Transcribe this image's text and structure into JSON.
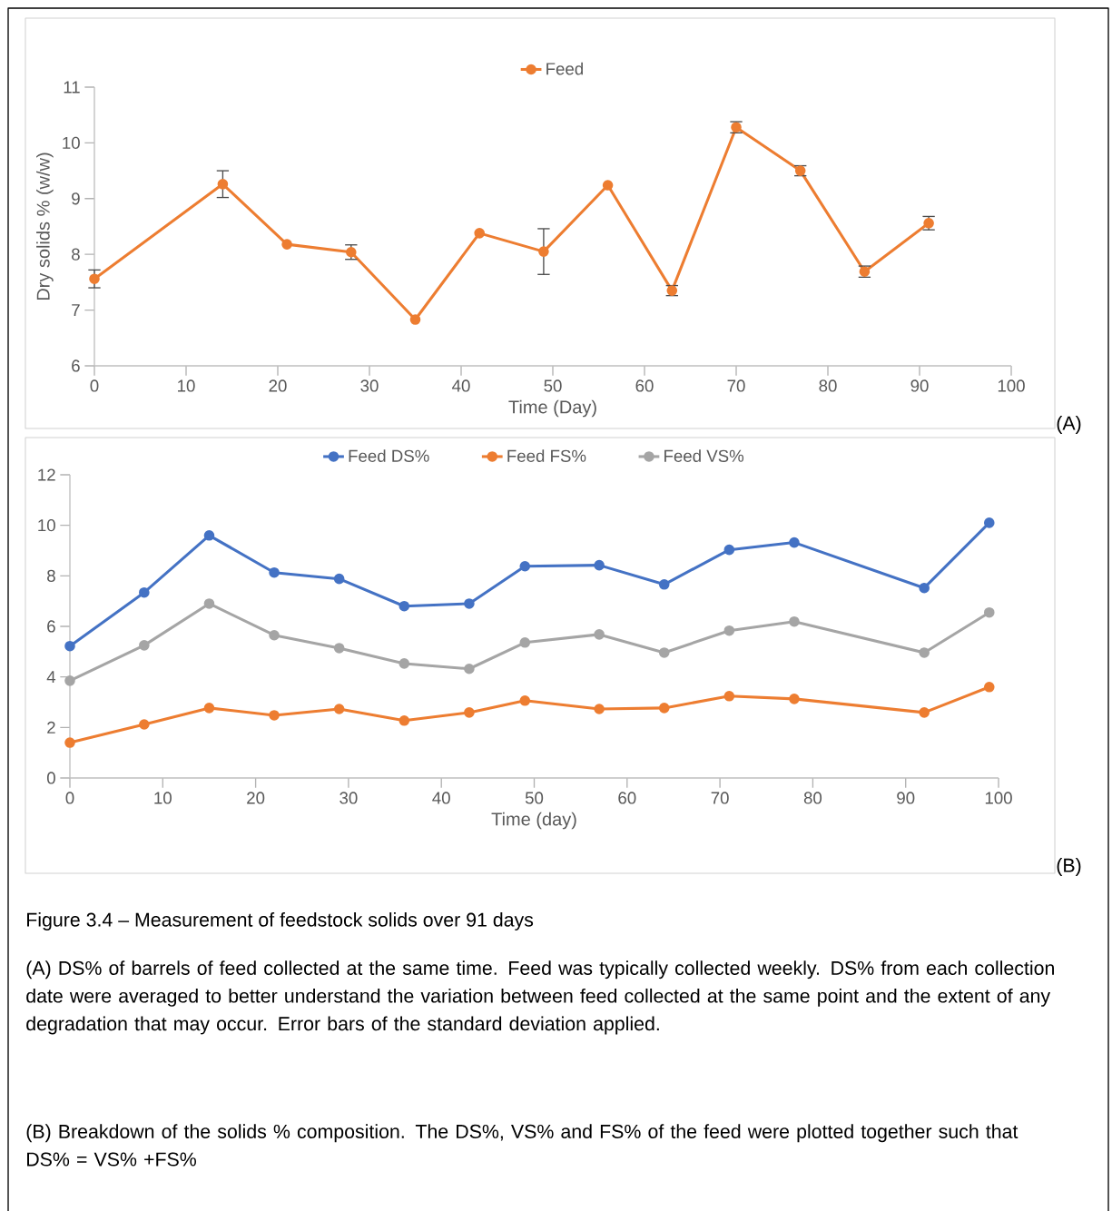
{
  "chart_data": [
    {
      "type": "line",
      "xlabel": "Time (Day)",
      "ylabel": "Dry solids % (w/w)",
      "x": [
        0,
        14,
        21,
        28,
        35,
        42,
        49,
        56,
        63,
        70,
        77,
        84,
        91
      ],
      "xlim": [
        0,
        100
      ],
      "xticks": [
        0,
        10,
        20,
        30,
        40,
        50,
        60,
        70,
        80,
        90,
        100
      ],
      "ylim": [
        6,
        11
      ],
      "yticks": [
        6,
        7,
        8,
        9,
        10,
        11
      ],
      "legend": "top",
      "marker": "circle",
      "line_style": "solid",
      "annotations": [
        "(A)"
      ],
      "series": [
        {
          "name": "Feed",
          "color": "#ed7d31",
          "values": [
            7.56,
            9.26,
            8.18,
            8.04,
            6.83,
            8.38,
            8.05,
            9.24,
            7.35,
            10.28,
            9.5,
            7.69,
            8.56
          ],
          "errors": [
            0.16,
            0.24,
            null,
            0.13,
            null,
            null,
            0.41,
            null,
            0.09,
            0.1,
            0.09,
            0.1,
            0.12
          ]
        }
      ]
    },
    {
      "type": "line",
      "xlabel": "Time (day)",
      "x": [
        0,
        8,
        15,
        22,
        29,
        36,
        43,
        49,
        57,
        64,
        71,
        78,
        92,
        99
      ],
      "xlim": [
        0,
        100
      ],
      "xticks": [
        0,
        10,
        20,
        30,
        40,
        50,
        60,
        70,
        80,
        90,
        100
      ],
      "ylim": [
        0,
        12
      ],
      "yticks": [
        0,
        2,
        4,
        6,
        8,
        10,
        12
      ],
      "legend": "top",
      "marker": "circle",
      "line_style": "solid",
      "annotations": [
        "(B)",
        "Figure 3.4 – Measurement of feedstock solids over 91 days",
        "(A) DS% of barrels of feed collected at the same time. Feed was typically collected weekly. DS% from each collection date were averaged to better understand the variation between feed collected at the same point and the extent of any degradation that may occur. Error bars of the standard deviation applied.",
        "(B) Breakdown of the solids % composition. The DS%, VS% and FS% of the feed were plotted together such that DS% = VS% +FS%"
      ],
      "series": [
        {
          "name": "Feed DS%",
          "color": "#4472c4",
          "values": [
            5.22,
            7.34,
            9.6,
            8.13,
            7.88,
            6.8,
            6.9,
            8.38,
            8.42,
            7.66,
            9.03,
            9.32,
            7.52,
            10.1
          ]
        },
        {
          "name": "Feed FS%",
          "color": "#ed7d31",
          "values": [
            1.4,
            2.12,
            2.77,
            2.48,
            2.73,
            2.27,
            2.59,
            3.06,
            2.73,
            2.77,
            3.24,
            3.13,
            2.59,
            3.6
          ]
        },
        {
          "name": "Feed VS%",
          "color": "#a5a5a5",
          "values": [
            3.85,
            5.25,
            6.9,
            5.65,
            5.14,
            4.53,
            4.32,
            5.36,
            5.68,
            4.96,
            5.83,
            6.19,
            4.96,
            6.55
          ]
        }
      ]
    }
  ]
}
